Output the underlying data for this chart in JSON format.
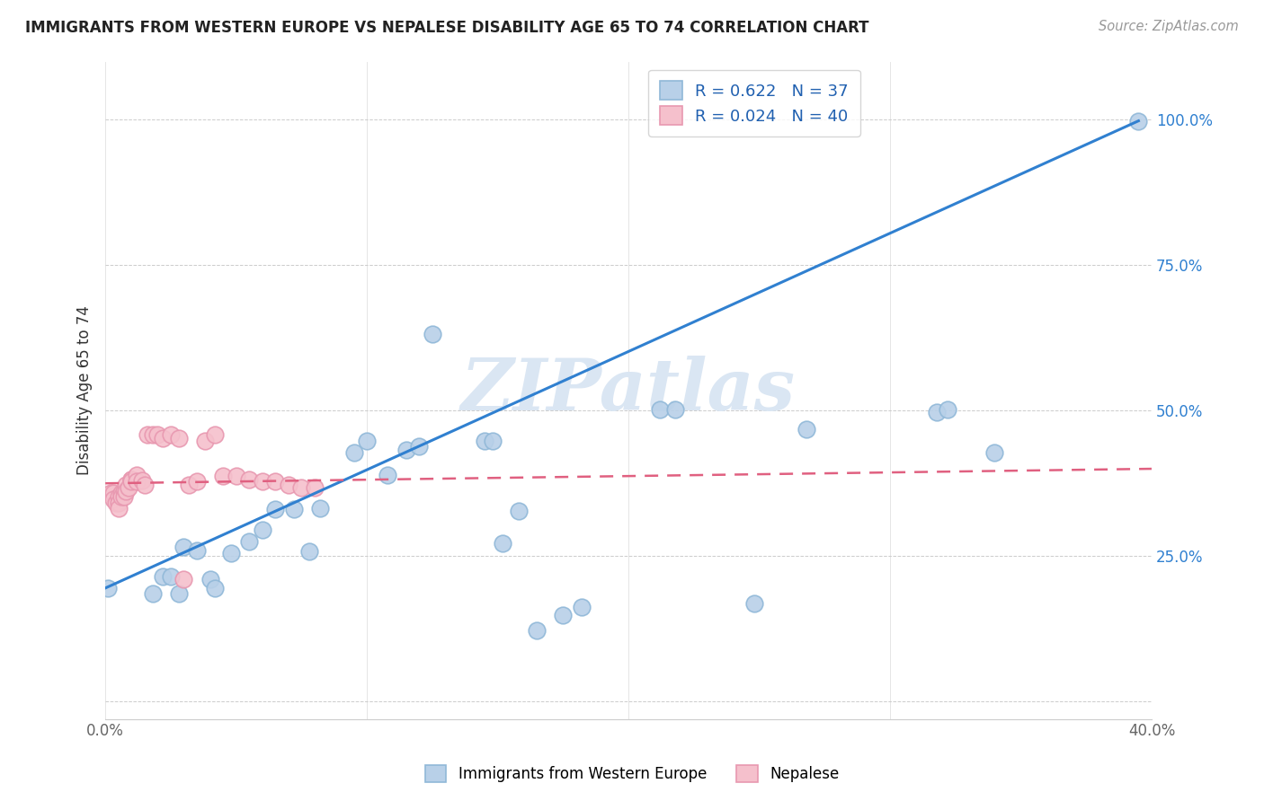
{
  "title": "IMMIGRANTS FROM WESTERN EUROPE VS NEPALESE DISABILITY AGE 65 TO 74 CORRELATION CHART",
  "source_text": "Source: ZipAtlas.com",
  "ylabel": "Disability Age 65 to 74",
  "xlim": [
    0.0,
    0.4
  ],
  "ylim": [
    -0.03,
    1.1
  ],
  "blue_R": 0.622,
  "blue_N": 37,
  "pink_R": 0.024,
  "pink_N": 40,
  "blue_color": "#b8d0e8",
  "blue_edge_color": "#90b8d8",
  "pink_color": "#f5c0cc",
  "pink_edge_color": "#e898b0",
  "blue_line_color": "#3080d0",
  "pink_line_color": "#e06080",
  "legend_r_color": "#2060b0",
  "watermark_color": "#dae6f3",
  "background_color": "#ffffff",
  "blue_x": [
    0.001,
    0.018,
    0.022,
    0.025,
    0.028,
    0.03,
    0.035,
    0.04,
    0.042,
    0.048,
    0.055,
    0.06,
    0.065,
    0.072,
    0.078,
    0.082,
    0.095,
    0.1,
    0.108,
    0.115,
    0.12,
    0.125,
    0.145,
    0.148,
    0.152,
    0.158,
    0.165,
    0.175,
    0.182,
    0.212,
    0.218,
    0.248,
    0.268,
    0.318,
    0.322,
    0.34,
    0.395
  ],
  "blue_y": [
    0.195,
    0.185,
    0.215,
    0.215,
    0.185,
    0.265,
    0.26,
    0.21,
    0.195,
    0.255,
    0.275,
    0.295,
    0.33,
    0.33,
    0.258,
    0.332,
    0.428,
    0.448,
    0.39,
    0.432,
    0.438,
    0.632,
    0.448,
    0.448,
    0.272,
    0.328,
    0.122,
    0.148,
    0.162,
    0.502,
    0.502,
    0.168,
    0.468,
    0.498,
    0.502,
    0.428,
    0.998
  ],
  "pink_x": [
    0.002,
    0.003,
    0.003,
    0.004,
    0.005,
    0.005,
    0.005,
    0.006,
    0.006,
    0.007,
    0.007,
    0.008,
    0.008,
    0.009,
    0.01,
    0.01,
    0.01,
    0.012,
    0.012,
    0.014,
    0.015,
    0.016,
    0.018,
    0.02,
    0.022,
    0.025,
    0.028,
    0.03,
    0.032,
    0.035,
    0.038,
    0.042,
    0.045,
    0.05,
    0.055,
    0.06,
    0.065,
    0.07,
    0.075,
    0.08
  ],
  "pink_y": [
    0.358,
    0.358,
    0.348,
    0.342,
    0.352,
    0.342,
    0.332,
    0.358,
    0.352,
    0.362,
    0.352,
    0.372,
    0.362,
    0.368,
    0.382,
    0.382,
    0.378,
    0.39,
    0.378,
    0.38,
    0.372,
    0.458,
    0.458,
    0.458,
    0.452,
    0.458,
    0.452,
    0.21,
    0.372,
    0.378,
    0.448,
    0.458,
    0.388,
    0.388,
    0.382,
    0.378,
    0.378,
    0.372,
    0.368,
    0.368
  ],
  "blue_line_x0": 0.0,
  "blue_line_y0": 0.195,
  "blue_line_x1": 0.395,
  "blue_line_y1": 0.998,
  "pink_line_x0": 0.0,
  "pink_line_y0": 0.375,
  "pink_line_x1": 0.4,
  "pink_line_y1": 0.4
}
